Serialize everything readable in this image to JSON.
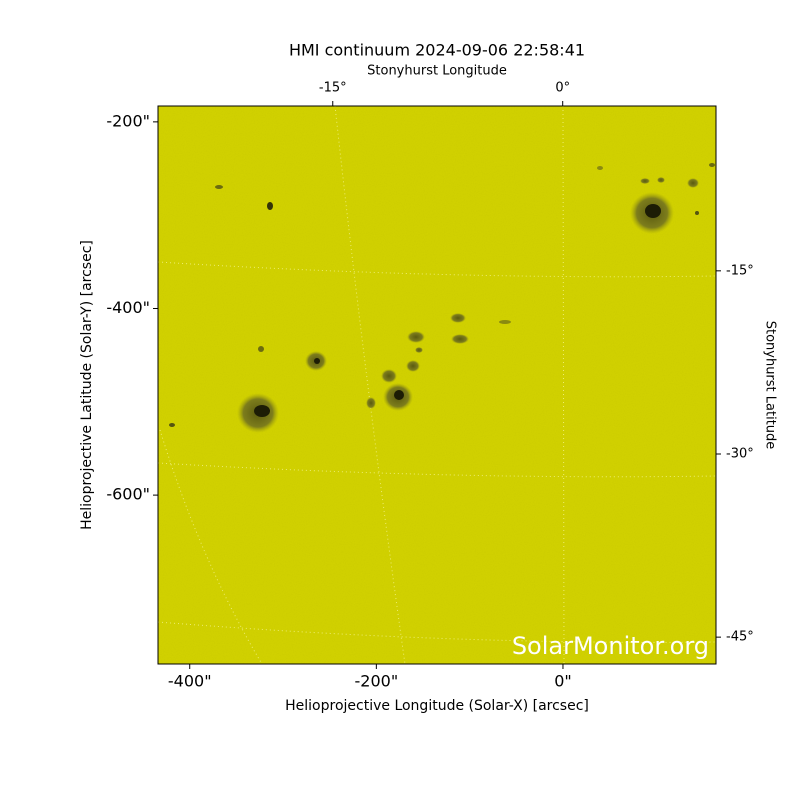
{
  "chart_data": {
    "type": "image",
    "title": "HMI continuum 2024-09-06 22:58:41",
    "xlabel": "Helioprojective Longitude (Solar-X) [arcsec]",
    "ylabel": "Helioprojective Latitude (Solar-Y) [arcsec]",
    "x2label": "Stonyhurst Longitude",
    "y2label": "Stonyhurst Latitude",
    "watermark": "SolarMonitor.org",
    "color": "#cccc00",
    "xlim": [
      -434,
      164
    ],
    "ylim": [
      -781,
      -183
    ],
    "xticks": [
      {
        "value": -400,
        "label": "-400\""
      },
      {
        "value": -200,
        "label": "-200\""
      },
      {
        "value": 0,
        "label": "0\""
      }
    ],
    "yticks": [
      {
        "value": -200,
        "label": "-200\""
      },
      {
        "value": -400,
        "label": "-400\""
      },
      {
        "value": -600,
        "label": "-600\""
      }
    ],
    "x2lim": [
      -26.4,
      10
    ],
    "x2ticks": [
      {
        "value": -15,
        "label": "-15°"
      },
      {
        "value": 0,
        "label": "0°"
      }
    ],
    "y2lim": [
      -47.2,
      -1.5
    ],
    "y2ticks": [
      {
        "value": -15,
        "label": "-15°"
      },
      {
        "value": -30,
        "label": "-30°"
      },
      {
        "value": -45,
        "label": "-45°"
      }
    ]
  }
}
